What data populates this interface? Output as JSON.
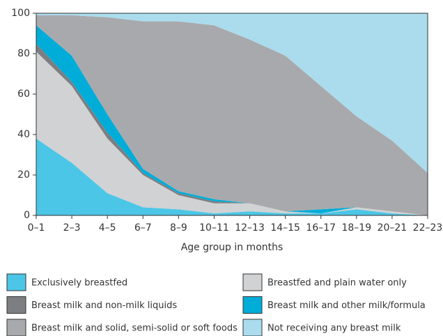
{
  "chart_data": {
    "type": "stacked_area",
    "x_label": "Age group in months",
    "categories": [
      "0–1",
      "2–3",
      "4–5",
      "6–7",
      "8–9",
      "10–11",
      "12–13",
      "14–15",
      "16–17",
      "18–19",
      "20–21",
      "22–23"
    ],
    "series": [
      {
        "name": "Exclusively breastfed",
        "color": "#4cc6e6",
        "values": [
          38,
          26,
          11,
          4,
          3,
          1,
          2,
          1,
          1,
          3,
          1,
          0
        ]
      },
      {
        "name": "Breastfed and plain water only",
        "color": "#d1d2d4",
        "values": [
          43,
          38,
          27,
          16,
          7,
          5,
          4,
          1,
          0,
          1,
          1,
          0
        ]
      },
      {
        "name": "Breast milk and non-milk liquids",
        "color": "#7d7e82",
        "values": [
          4,
          2,
          3,
          1,
          1,
          1,
          0,
          0,
          0,
          0,
          0,
          0
        ]
      },
      {
        "name": "Breast milk and other milk/formula",
        "color": "#00acd8",
        "values": [
          9,
          13,
          9,
          2,
          1,
          1,
          0,
          0,
          2,
          0,
          0,
          0
        ]
      },
      {
        "name": "Breast milk and solid, semi-solid or soft foods",
        "color": "#a8a9ac",
        "values": [
          5,
          20,
          48,
          73,
          84,
          86,
          81,
          77,
          61,
          45,
          35,
          21
        ]
      },
      {
        "name": "Not receiving any breast milk",
        "color": "#aadcee",
        "values": [
          1,
          1,
          2,
          4,
          4,
          6,
          13,
          21,
          36,
          51,
          63,
          79
        ]
      }
    ],
    "ylim": [
      0,
      100
    ],
    "yticks": [
      0,
      20,
      40,
      60,
      80,
      100
    ],
    "legend": "bottom"
  }
}
